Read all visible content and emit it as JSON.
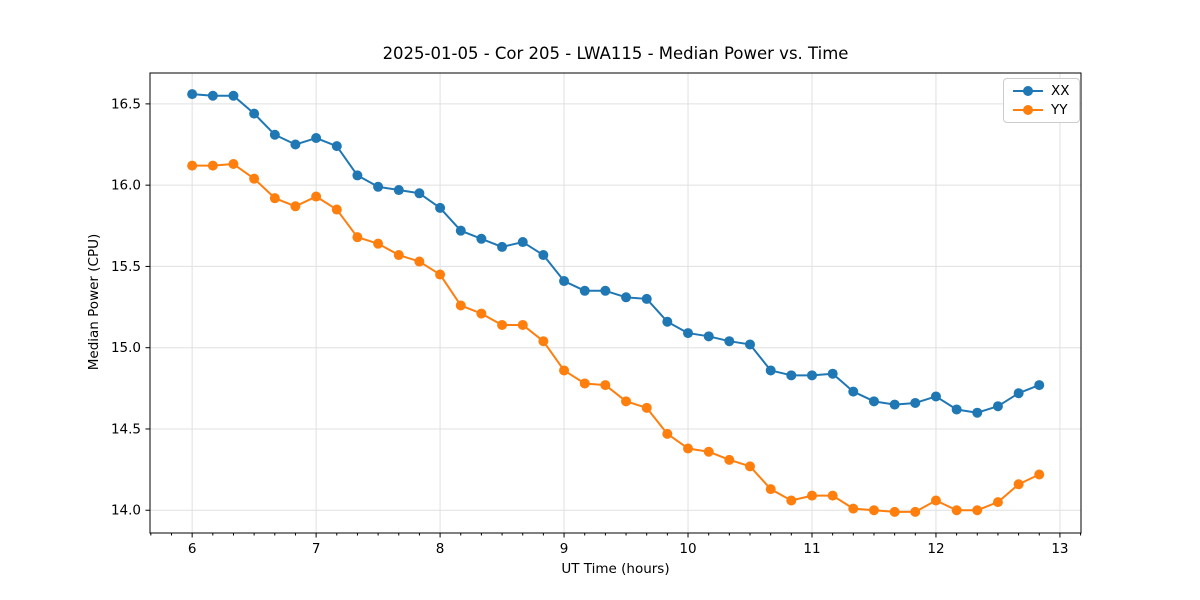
{
  "figure": {
    "background": "#ffffff"
  },
  "chart_data": {
    "type": "line",
    "title": "2025-01-05 - Cor 205 - LWA115 - Median Power vs. Time",
    "xlabel": "UT Time (hours)",
    "ylabel": "Median Power (CPU)",
    "x": [
      6.0,
      6.167,
      6.333,
      6.5,
      6.667,
      6.833,
      7.0,
      7.167,
      7.333,
      7.5,
      7.667,
      7.833,
      8.0,
      8.167,
      8.333,
      8.5,
      8.667,
      8.833,
      9.0,
      9.167,
      9.333,
      9.5,
      9.667,
      9.833,
      10.0,
      10.167,
      10.333,
      10.5,
      10.667,
      10.833,
      11.0,
      11.167,
      11.333,
      11.5,
      11.667,
      11.833,
      12.0,
      12.167,
      12.333,
      12.5,
      12.667,
      12.833
    ],
    "series": [
      {
        "name": "XX",
        "color": "#1f77b4",
        "values": [
          16.56,
          16.55,
          16.55,
          16.44,
          16.31,
          16.25,
          16.29,
          16.24,
          16.06,
          15.99,
          15.97,
          15.95,
          15.86,
          15.72,
          15.67,
          15.62,
          15.65,
          15.57,
          15.41,
          15.35,
          15.35,
          15.31,
          15.3,
          15.16,
          15.09,
          15.07,
          15.04,
          15.02,
          14.86,
          14.83,
          14.83,
          14.84,
          14.73,
          14.67,
          14.65,
          14.66,
          14.7,
          14.62,
          14.6,
          14.64,
          14.72,
          14.77
        ]
      },
      {
        "name": "YY",
        "color": "#ff7f0e",
        "values": [
          16.12,
          16.12,
          16.13,
          16.04,
          15.92,
          15.87,
          15.93,
          15.85,
          15.68,
          15.64,
          15.57,
          15.53,
          15.45,
          15.26,
          15.21,
          15.14,
          15.14,
          15.04,
          14.86,
          14.78,
          14.77,
          14.67,
          14.63,
          14.47,
          14.38,
          14.36,
          14.31,
          14.27,
          14.13,
          14.06,
          14.09,
          14.09,
          14.01,
          14.0,
          13.99,
          13.99,
          14.06,
          14.0,
          14.0,
          14.05,
          14.16,
          14.22
        ]
      }
    ],
    "xlim": [
      5.66,
      13.17
    ],
    "ylim": [
      13.86,
      16.69
    ],
    "xticks": [
      6,
      7,
      8,
      9,
      10,
      11,
      12,
      13
    ],
    "yticks": [
      14.0,
      14.5,
      15.0,
      15.5,
      16.0,
      16.5
    ],
    "x_minor_tick_step": 0.1667,
    "grid": true,
    "grid_color": "#e0e0e0",
    "axis_color": "#000000",
    "line_width": 2,
    "marker": "circle",
    "marker_size": 5,
    "legend": {
      "position": "upper right",
      "entries": [
        "XX",
        "YY"
      ]
    }
  }
}
